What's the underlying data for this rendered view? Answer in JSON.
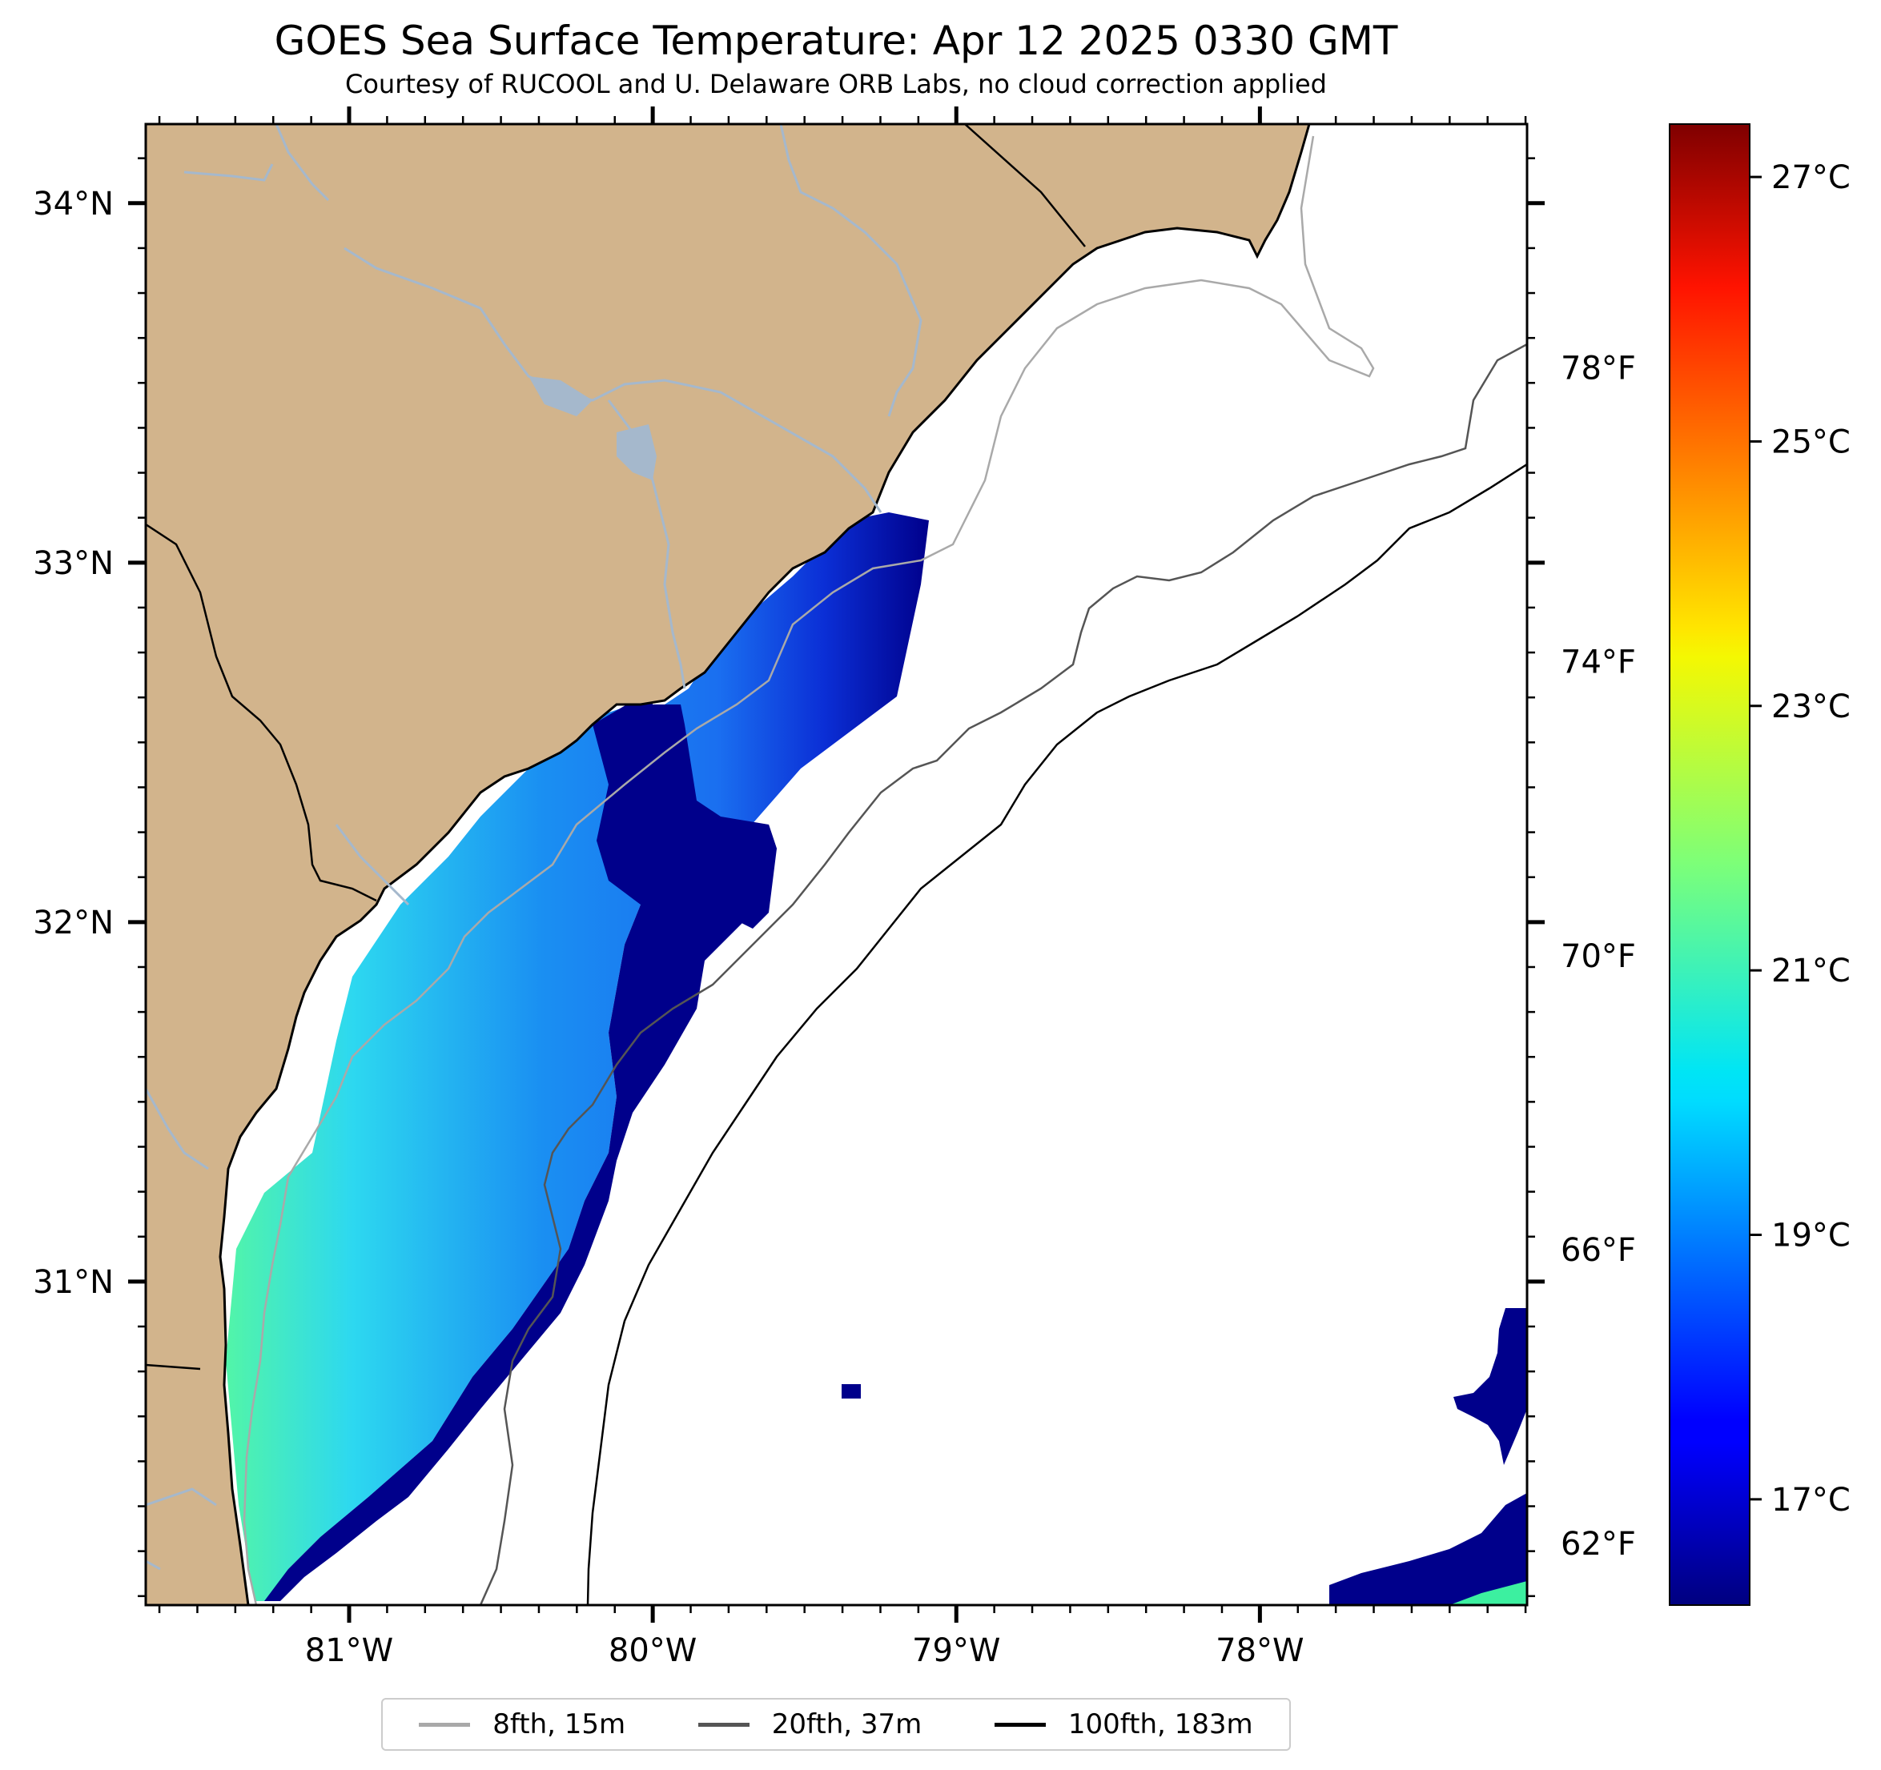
{
  "title": "GOES Sea Surface Temperature: Apr 12 2025 0330 GMT",
  "subtitle": "Courtesy of RUCOOL and U. Delaware ORB Labs, no cloud correction applied",
  "map": {
    "extent_lon": [
      -81.67,
      -77.12
    ],
    "extent_lat": [
      30.1,
      34.22
    ],
    "lat_ticks": [
      {
        "value": 34,
        "label": "34°N"
      },
      {
        "value": 33,
        "label": "33°N"
      },
      {
        "value": 32,
        "label": "32°N"
      },
      {
        "value": 31,
        "label": "31°N"
      }
    ],
    "lon_ticks": [
      {
        "value": -81,
        "label": "81°W"
      },
      {
        "value": -80,
        "label": "80°W"
      },
      {
        "value": -79,
        "label": "79°W"
      },
      {
        "value": -78,
        "label": "78°W"
      }
    ],
    "fahrenheit_ticks": [
      {
        "value": 78,
        "label": "78°F"
      },
      {
        "value": 74,
        "label": "74°F"
      },
      {
        "value": 70,
        "label": "70°F"
      },
      {
        "value": 66,
        "label": "66°F"
      },
      {
        "value": 62,
        "label": "62°F"
      }
    ],
    "land_color": "#d2b48c",
    "river_color": "#a5b8cc"
  },
  "colorbar": {
    "min_c": 16.2,
    "max_c": 27.4,
    "colormap": "jet",
    "ticks": [
      {
        "value": 27,
        "label": "27°C"
      },
      {
        "value": 25,
        "label": "25°C"
      },
      {
        "value": 23,
        "label": "23°C"
      },
      {
        "value": 21,
        "label": "21°C"
      },
      {
        "value": 19,
        "label": "19°C"
      },
      {
        "value": 17,
        "label": "17°C"
      }
    ]
  },
  "legend": [
    {
      "label": "8fth, 15m",
      "color": "#a9a9a9"
    },
    {
      "label": "20fth, 37m",
      "color": "#555555"
    },
    {
      "label": "100fth, 183m",
      "color": "#000000"
    }
  ]
}
